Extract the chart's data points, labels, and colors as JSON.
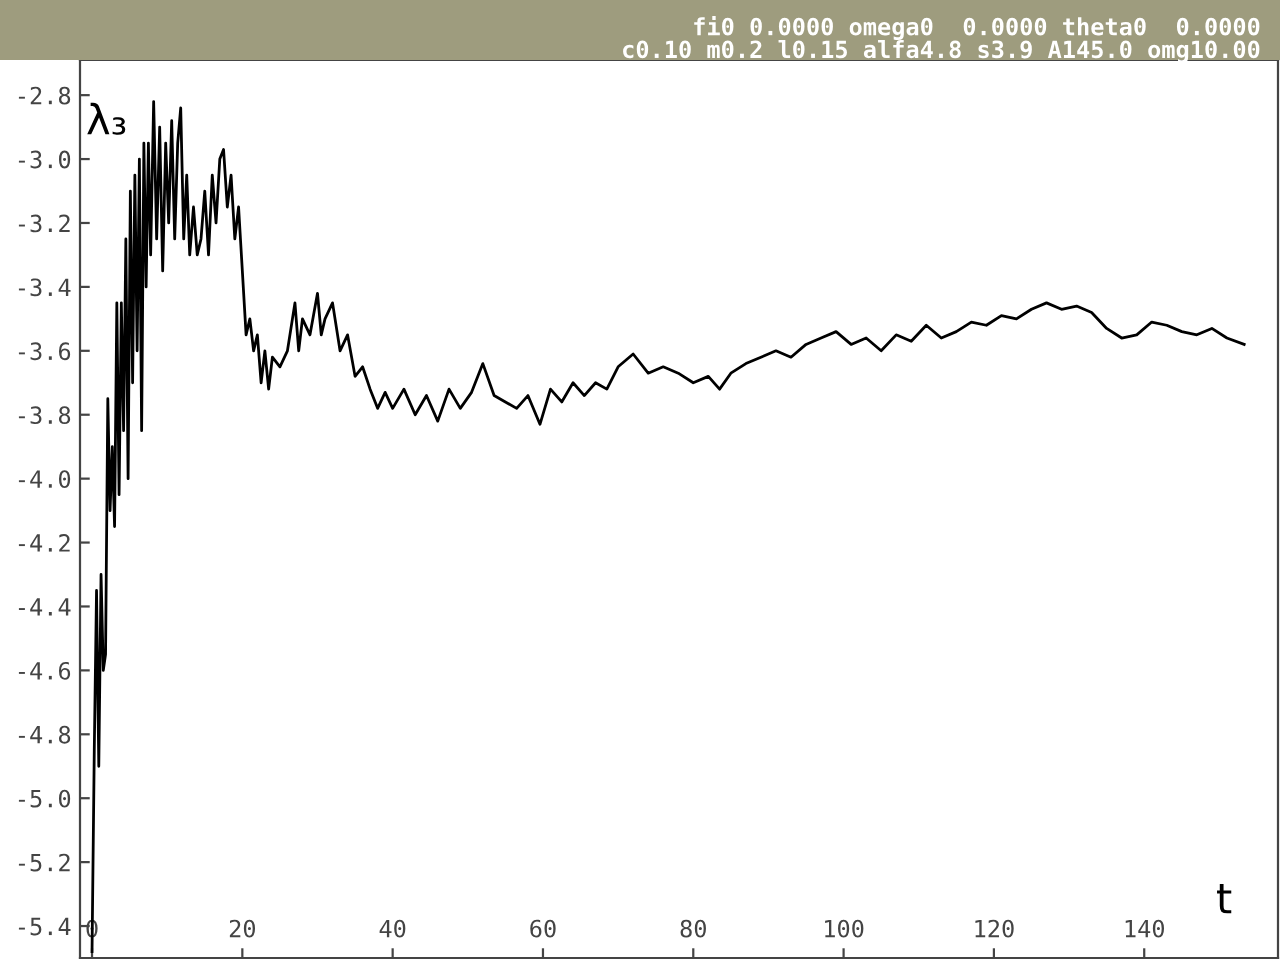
{
  "chart_data": {
    "type": "line",
    "xlabel": "t",
    "ylabel": "λ₃",
    "annotations": [
      "fi0 0.0000 omega0  0.0000 theta0  0.0000",
      "c0.10 m0.2 l0.15 alfa4.8 s3.9 A145.0 omg10.00"
    ],
    "xlim": [
      -1.6,
      157.8
    ],
    "ylim": [
      -5.5,
      -2.69
    ],
    "xticks": [
      0,
      20,
      40,
      60,
      80,
      100,
      120,
      140
    ],
    "yticks": [
      -2.8,
      {
        "value": -3,
        "label": "-3.0"
      },
      -3.2,
      -3.4,
      -3.6,
      -3.8,
      {
        "value": -4,
        "label": "-4.0"
      },
      -4.2,
      -4.4,
      -4.6,
      -4.8,
      {
        "value": -5,
        "label": "-5.0"
      },
      -5.2,
      -5.4
    ],
    "grid": false,
    "legend": false,
    "marker": "none",
    "line_style": "solid",
    "series": [
      {
        "color": "#000000",
        "x": [
          0,
          0.3,
          0.6,
          0.9,
          1.2,
          1.5,
          1.8,
          2.1,
          2.4,
          2.7,
          3.0,
          3.3,
          3.6,
          3.9,
          4.2,
          4.5,
          4.8,
          5.1,
          5.4,
          5.7,
          6.0,
          6.3,
          6.6,
          6.9,
          7.2,
          7.5,
          7.8,
          8.2,
          8.6,
          9.0,
          9.4,
          9.8,
          10.2,
          10.6,
          11.0,
          11.4,
          11.8,
          12.2,
          12.6,
          13.0,
          13.5,
          14.0,
          14.5,
          15.0,
          15.5,
          16.0,
          16.5,
          17.0,
          17.5,
          18.0,
          18.5,
          19.0,
          19.5,
          20.0,
          20.5,
          21.0,
          21.5,
          22.0,
          22.5,
          23.0,
          23.5,
          24.0,
          25.0,
          26.0,
          27.0,
          27.5,
          28.0,
          29.0,
          30.0,
          30.5,
          31.0,
          32.0,
          33.0,
          34.0,
          35.0,
          36.0,
          37.0,
          38.0,
          39.0,
          40.0,
          41.5,
          43,
          44.5,
          46,
          47.5,
          49,
          50.5,
          52,
          53.5,
          55,
          56.5,
          58,
          59.6,
          61,
          62.5,
          64,
          65.5,
          67,
          68.5,
          70,
          72,
          74,
          76,
          78,
          80,
          82,
          83.5,
          85,
          87,
          89,
          91,
          93,
          95,
          97,
          99,
          101,
          103,
          105,
          107,
          109,
          111,
          113,
          115,
          117,
          119,
          121,
          123,
          125,
          127,
          129,
          131,
          133,
          135,
          137,
          139,
          141,
          143,
          145,
          147,
          149,
          151,
          153.3
        ],
        "values": [
          -5.48,
          -4.85,
          -4.35,
          -4.9,
          -4.3,
          -4.6,
          -4.55,
          -3.75,
          -4.1,
          -3.9,
          -4.15,
          -3.45,
          -4.05,
          -3.45,
          -3.85,
          -3.25,
          -4.0,
          -3.1,
          -3.7,
          -3.05,
          -3.6,
          -3.0,
          -3.85,
          -2.95,
          -3.4,
          -2.95,
          -3.3,
          -2.82,
          -3.25,
          -2.9,
          -3.35,
          -2.95,
          -3.2,
          -2.88,
          -3.25,
          -2.95,
          -2.84,
          -3.25,
          -3.05,
          -3.3,
          -3.15,
          -3.3,
          -3.25,
          -3.1,
          -3.3,
          -3.05,
          -3.2,
          -3.0,
          -2.97,
          -3.15,
          -3.05,
          -3.25,
          -3.15,
          -3.35,
          -3.55,
          -3.5,
          -3.6,
          -3.55,
          -3.7,
          -3.6,
          -3.72,
          -3.62,
          -3.65,
          -3.6,
          -3.45,
          -3.6,
          -3.5,
          -3.55,
          -3.42,
          -3.55,
          -3.5,
          -3.45,
          -3.6,
          -3.55,
          -3.68,
          -3.65,
          -3.72,
          -3.78,
          -3.73,
          -3.78,
          -3.72,
          -3.8,
          -3.74,
          -3.82,
          -3.72,
          -3.78,
          -3.73,
          -3.64,
          -3.74,
          -3.76,
          -3.78,
          -3.74,
          -3.83,
          -3.72,
          -3.76,
          -3.7,
          -3.74,
          -3.7,
          -3.72,
          -3.65,
          -3.61,
          -3.67,
          -3.65,
          -3.67,
          -3.7,
          -3.68,
          -3.72,
          -3.67,
          -3.64,
          -3.62,
          -3.6,
          -3.62,
          -3.58,
          -3.56,
          -3.54,
          -3.58,
          -3.56,
          -3.6,
          -3.55,
          -3.57,
          -3.52,
          -3.56,
          -3.54,
          -3.51,
          -3.52,
          -3.49,
          -3.5,
          -3.47,
          -3.45,
          -3.47,
          -3.46,
          -3.48,
          -3.53,
          -3.56,
          -3.55,
          -3.51,
          -3.52,
          -3.54,
          -3.55,
          -3.53,
          -3.56,
          -3.58
        ]
      }
    ]
  }
}
